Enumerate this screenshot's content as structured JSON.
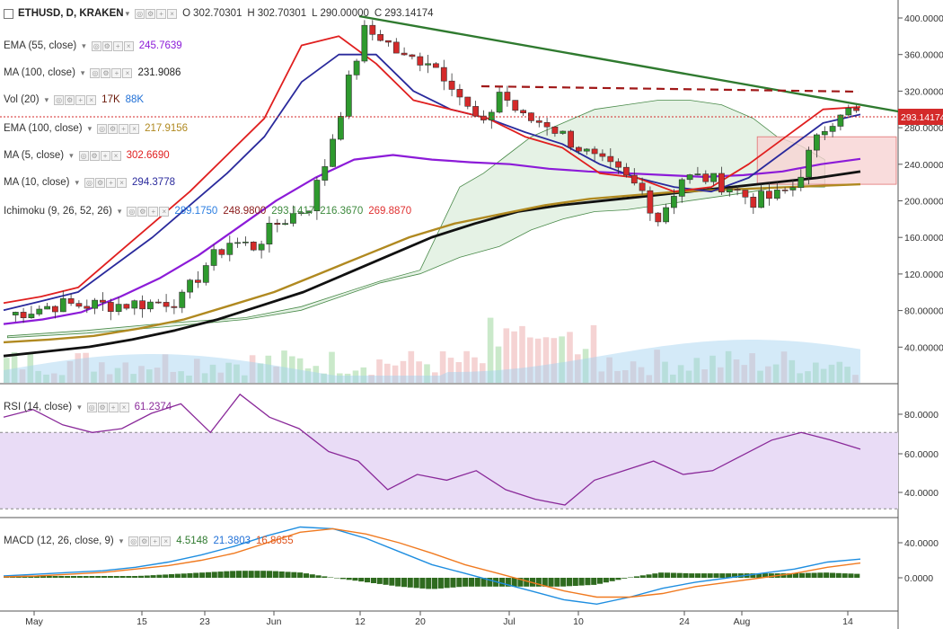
{
  "header": {
    "symbol": "ETHUSD, D, KRAKEN",
    "ohlc": [
      {
        "k": "O",
        "v": "302.70301"
      },
      {
        "k": "H",
        "v": "302.70301"
      },
      {
        "k": "L",
        "v": "290.00000"
      },
      {
        "k": "C",
        "v": "293.14174"
      }
    ]
  },
  "indicators": [
    {
      "name": "EMA (55, close)",
      "values": [
        {
          "v": "245.7639",
          "color": "#8c1bd8"
        }
      ]
    },
    {
      "name": "MA (100, close)",
      "values": [
        {
          "v": "231.9086",
          "color": "#222222"
        }
      ]
    },
    {
      "name": "Vol (20)",
      "values": [
        {
          "v": "17K",
          "color": "#6b1a0a"
        },
        {
          "v": "88K",
          "color": "#1f6fd6"
        }
      ]
    },
    {
      "name": "EMA (100, close)",
      "values": [
        {
          "v": "217.9156",
          "color": "#b08920"
        }
      ]
    },
    {
      "name": "MA (5, close)",
      "values": [
        {
          "v": "302.6690",
          "color": "#e01f1f"
        }
      ]
    },
    {
      "name": "MA (10, close)",
      "values": [
        {
          "v": "294.3778",
          "color": "#2a2a9c"
        }
      ]
    },
    {
      "name": "Ichimoku (9, 26, 52, 26)",
      "values": [
        {
          "v": "289.1750",
          "color": "#2a7de1"
        },
        {
          "v": "248.9800",
          "color": "#8a1a1a"
        },
        {
          "v": "293.1417",
          "color": "#3d8a3d"
        },
        {
          "v": "216.3670",
          "color": "#3d8a3d"
        },
        {
          "v": "269.8870",
          "color": "#e03030"
        }
      ]
    }
  ],
  "rsi": {
    "label": "RSI (14, close)",
    "value": "61.2374"
  },
  "macd": {
    "label": "MACD (12, 26, close, 9)",
    "values": [
      {
        "v": "4.5148",
        "color": "#2f7a2f"
      },
      {
        "v": "21.3803",
        "color": "#1f6fd6"
      },
      {
        "v": "16.8655",
        "color": "#e0561f"
      }
    ]
  },
  "price_axis": {
    "ticks": [
      "400.00000",
      "360.00000",
      "320.00000",
      "280.00000",
      "240.00000",
      "200.00000",
      "160.00000",
      "120.00000",
      "80.00000",
      "40.00000"
    ],
    "last_price": "293.14174"
  },
  "rsi_axis": {
    "ticks": [
      "80.0000",
      "60.0000",
      "40.0000"
    ]
  },
  "macd_axis": {
    "ticks": [
      "40.0000",
      "0.0000"
    ]
  },
  "time_axis": {
    "labels": [
      "May",
      "15",
      "23",
      "Jun",
      "12",
      "20",
      "Jul",
      "10",
      "24",
      "Aug",
      "14"
    ]
  },
  "colors": {
    "up": "#2e9a2e",
    "down": "#d42a2a",
    "ma5": "#e01f1f",
    "ma10": "#2a2a9c",
    "ema55": "#8c1bd8",
    "ma100": "#111111",
    "ema100": "#b08920",
    "trend": "#2f7a2f",
    "resistance": "#a01818",
    "cloud": "#cfe8cf",
    "cloud_red": "#f7d3d3",
    "rsi": "#8a2a9a",
    "rsi_band": "#e9dcf6",
    "macd": "#1f8ee0",
    "signal": "#f07a20",
    "hist": "#2f6b1f"
  },
  "chart_data": [
    {
      "type": "line",
      "title": "ETHUSD, D, KRAKEN",
      "x_labels": [
        "May",
        "15",
        "23",
        "Jun",
        "12",
        "20",
        "Jul",
        "10",
        "24",
        "Aug",
        "14"
      ],
      "ylim": [
        0,
        410
      ],
      "series": [
        {
          "name": "MA (5, close)",
          "values": [
            88,
            95,
            105,
            140,
            175,
            210,
            250,
            290,
            370,
            380,
            350,
            310,
            300,
            290,
            270,
            258,
            230,
            225,
            210,
            215,
            240,
            270,
            300,
            302.67
          ]
        },
        {
          "name": "MA (10, close)",
          "values": [
            80,
            90,
            100,
            130,
            160,
            195,
            230,
            270,
            330,
            360,
            360,
            320,
            300,
            290,
            275,
            262,
            240,
            225,
            215,
            210,
            225,
            255,
            285,
            294.38
          ]
        },
        {
          "name": "EMA (55, close)",
          "values": [
            65,
            70,
            78,
            95,
            115,
            140,
            170,
            200,
            225,
            245,
            250,
            245,
            242,
            240,
            235,
            232,
            230,
            228,
            226,
            228,
            232,
            240,
            245.76
          ]
        },
        {
          "name": "MA (100, close)",
          "values": [
            30,
            35,
            40,
            48,
            58,
            70,
            85,
            100,
            120,
            140,
            160,
            175,
            188,
            195,
            200,
            205,
            210,
            215,
            220,
            225,
            231.91
          ]
        },
        {
          "name": "EMA (100, close)",
          "values": [
            45,
            48,
            52,
            60,
            70,
            85,
            100,
            120,
            140,
            160,
            175,
            185,
            195,
            202,
            206,
            210,
            212,
            214,
            216,
            217.92
          ]
        }
      ]
    },
    {
      "type": "line",
      "title": "RSI (14, close)",
      "ylim": [
        25,
        95
      ],
      "series": [
        {
          "name": "RSI (14, close)",
          "values": [
            78,
            82,
            74,
            70,
            72,
            80,
            85,
            70,
            90,
            78,
            72,
            60,
            55,
            40,
            48,
            45,
            50,
            40,
            35,
            32,
            45,
            50,
            55,
            48,
            50,
            58,
            66,
            70,
            66,
            61.24
          ]
        }
      ]
    },
    {
      "type": "line",
      "title": "MACD (12, 26, close, 9)",
      "ylim": [
        -35,
        70
      ],
      "series": [
        {
          "name": "MACD",
          "values": [
            2,
            4,
            6,
            8,
            12,
            18,
            26,
            36,
            48,
            58,
            56,
            45,
            30,
            15,
            5,
            -5,
            -15,
            -25,
            -30,
            -22,
            -12,
            -5,
            0,
            5,
            10,
            18,
            21.38
          ]
        },
        {
          "name": "Signal",
          "values": [
            1,
            2,
            4,
            6,
            10,
            14,
            20,
            28,
            40,
            52,
            56,
            50,
            40,
            28,
            15,
            5,
            -5,
            -15,
            -22,
            -22,
            -18,
            -10,
            -5,
            0,
            5,
            12,
            16.87
          ]
        },
        {
          "name": "Histogram",
          "values": [
            1,
            2,
            2,
            2,
            2,
            4,
            6,
            8,
            8,
            6,
            0,
            -5,
            -10,
            -13,
            -10,
            -10,
            -10,
            -10,
            -8,
            0,
            6,
            5,
            5,
            5,
            5,
            6,
            4.51
          ]
        }
      ]
    }
  ]
}
